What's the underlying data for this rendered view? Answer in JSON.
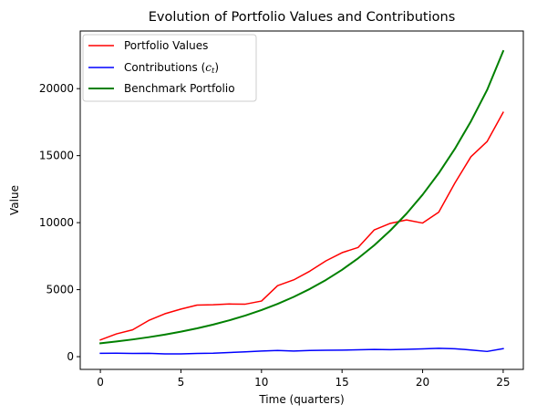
{
  "chart_data": {
    "type": "line",
    "title": "Evolution of Portfolio Values and Contributions",
    "xlabel": "Time (quarters)",
    "ylabel": "Value",
    "xlim": [
      -1.25,
      26.25
    ],
    "ylim": [
      -950,
      24300
    ],
    "xticks": [
      0,
      5,
      10,
      15,
      20,
      25
    ],
    "yticks": [
      0,
      5000,
      10000,
      15000,
      20000
    ],
    "x": [
      0,
      1,
      2,
      3,
      4,
      5,
      6,
      7,
      8,
      9,
      10,
      11,
      12,
      13,
      14,
      15,
      16,
      17,
      18,
      19,
      20,
      21,
      22,
      23,
      24,
      25
    ],
    "grid": false,
    "legend_position": "upper-left",
    "series": [
      {
        "name": "Portfolio Values",
        "color": "#ff0000",
        "line_width": 1.5,
        "values": [
          1250,
          1700,
          2000,
          2700,
          3200,
          3550,
          3850,
          3870,
          3930,
          3920,
          4150,
          5300,
          5730,
          6380,
          7150,
          7760,
          8150,
          9460,
          9950,
          10200,
          9970,
          10780,
          12950,
          14920,
          16050,
          18230
        ]
      },
      {
        "name": "Contributions",
        "name_subscript_var": "c",
        "name_subscript": "t",
        "color": "#0000ff",
        "line_width": 1.5,
        "values": [
          250,
          260,
          240,
          250,
          210,
          210,
          240,
          260,
          310,
          360,
          420,
          460,
          420,
          460,
          480,
          490,
          510,
          540,
          520,
          550,
          580,
          620,
          590,
          500,
          390,
          600
        ]
      },
      {
        "name": "Benchmark Portfolio",
        "color": "#008000",
        "line_width": 2,
        "values": [
          1000,
          1133,
          1283,
          1453,
          1646,
          1865,
          2112,
          2392,
          2710,
          3070,
          3477,
          3938,
          4461,
          5053,
          5723,
          6483,
          7343,
          8317,
          9421,
          10671,
          12087,
          13690,
          15507,
          17565,
          19895,
          22800
        ]
      }
    ]
  }
}
